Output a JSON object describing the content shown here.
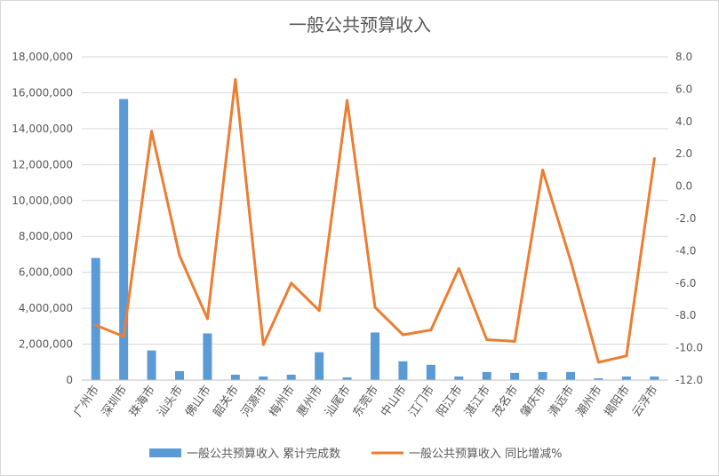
{
  "chart_data": {
    "type": "bar+line",
    "title": "一般公共预算收入",
    "categories": [
      "广州市",
      "深圳市",
      "珠海市",
      "汕头市",
      "佛山市",
      "韶关市",
      "河源市",
      "梅州市",
      "惠州市",
      "汕尾市",
      "东莞市",
      "中山市",
      "江门市",
      "阳江市",
      "湛江市",
      "茂名市",
      "肇庆市",
      "清远市",
      "潮州市",
      "揭阳市",
      "云浮市"
    ],
    "series": [
      {
        "name": "一般公共预算收入 累计完成数",
        "type": "bar",
        "axis": "left",
        "color": "#5b9bd5",
        "values": [
          6800000,
          15650000,
          1650000,
          500000,
          2600000,
          300000,
          200000,
          300000,
          1550000,
          150000,
          2650000,
          1050000,
          850000,
          200000,
          450000,
          400000,
          450000,
          450000,
          100000,
          200000,
          200000
        ]
      },
      {
        "name": "一般公共预算收入 同比增减%",
        "type": "line",
        "axis": "right",
        "color": "#ed7d31",
        "values": [
          -8.6,
          -9.3,
          3.4,
          -4.3,
          -8.2,
          6.6,
          -9.8,
          -6.0,
          -7.7,
          5.3,
          -7.5,
          -9.2,
          -8.9,
          -5.1,
          -9.5,
          -9.6,
          1.0,
          -4.6,
          -10.9,
          -10.5,
          1.7
        ]
      }
    ],
    "y_left": {
      "range": [
        0,
        18000000
      ],
      "ticks": [
        "0",
        "2,000,000",
        "4,000,000",
        "6,000,000",
        "8,000,000",
        "10,000,000",
        "12,000,000",
        "14,000,000",
        "16,000,000",
        "18,000,000"
      ]
    },
    "y_right": {
      "range": [
        -12,
        8
      ],
      "ticks": [
        "-12.0",
        "-10.0",
        "-8.0",
        "-6.0",
        "-4.0",
        "-2.0",
        "0.0",
        "2.0",
        "4.0",
        "6.0",
        "8.0"
      ]
    },
    "grid": true,
    "legend": "bottom"
  }
}
